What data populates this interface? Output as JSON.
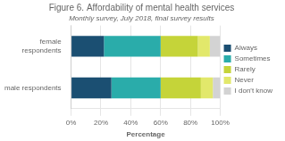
{
  "chart_data": {
    "type": "bar",
    "orientation": "horizontal",
    "stacked": true,
    "title": "Figure 6. Affordability of mental health services",
    "subtitle": "Monthly survey, July 2018, final survey results",
    "categories": [
      "female\nrespondents",
      "male respondents"
    ],
    "series": [
      {
        "name": "Always",
        "color": "#1b4f72",
        "values": [
          22,
          27
        ]
      },
      {
        "name": "Sometimes",
        "color": "#2aacaa",
        "values": [
          38,
          33
        ]
      },
      {
        "name": "Rarely",
        "color": "#c5d439",
        "values": [
          25,
          27
        ]
      },
      {
        "name": "Never",
        "color": "#e2e86b",
        "values": [
          8,
          8
        ]
      },
      {
        "name": "I don't know",
        "color": "#d3d3d3",
        "values": [
          7,
          5
        ]
      }
    ],
    "xlabel": "Percentage",
    "xlim": [
      0,
      100
    ],
    "xticks": [
      {
        "value": 0,
        "label": "0%"
      },
      {
        "value": 20,
        "label": "20%"
      },
      {
        "value": 40,
        "label": "40%"
      },
      {
        "value": 60,
        "label": "60%"
      },
      {
        "value": 80,
        "label": "80%"
      },
      {
        "value": 100,
        "label": "100%"
      }
    ],
    "grid": true,
    "legend": "right"
  }
}
